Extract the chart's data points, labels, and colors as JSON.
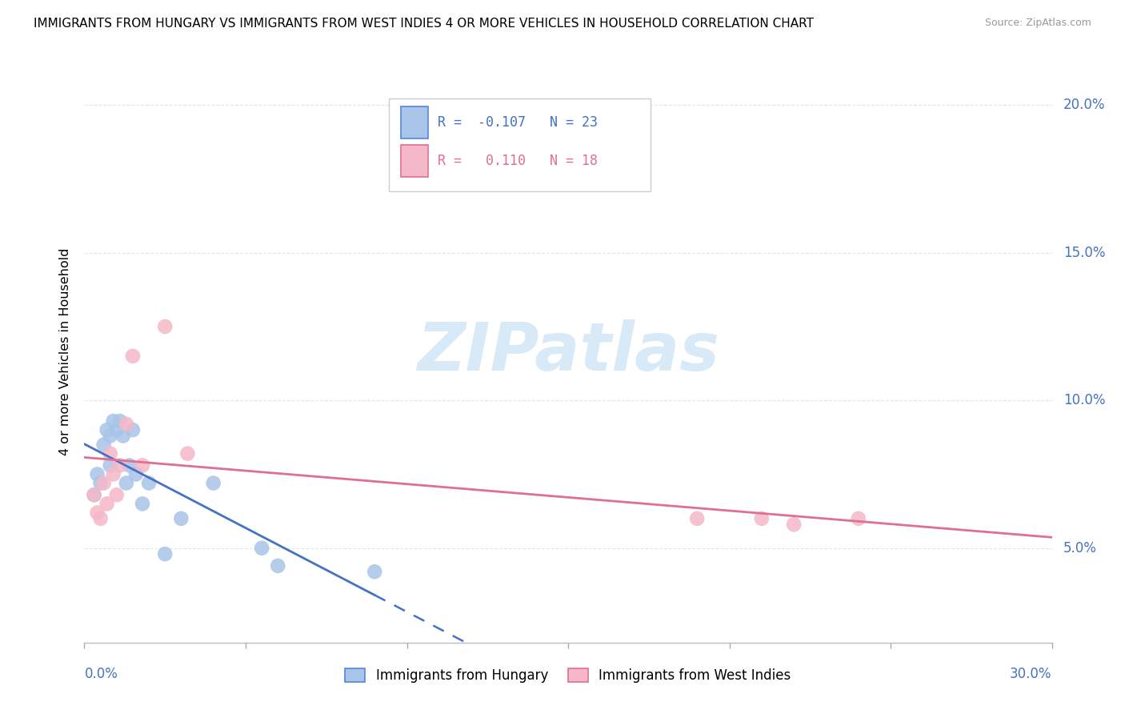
{
  "title": "IMMIGRANTS FROM HUNGARY VS IMMIGRANTS FROM WEST INDIES 4 OR MORE VEHICLES IN HOUSEHOLD CORRELATION CHART",
  "source": "Source: ZipAtlas.com",
  "ylabel": "4 or more Vehicles in Household",
  "xmin": 0.0,
  "xmax": 0.3,
  "ymin": 0.018,
  "ymax": 0.215,
  "legend_hungary": "Immigrants from Hungary",
  "legend_westindies": "Immigrants from West Indies",
  "R_hungary": -0.107,
  "N_hungary": 23,
  "R_westindies": 0.11,
  "N_westindies": 18,
  "hungary_color": "#a8c4e8",
  "westindies_color": "#f5b8c8",
  "hungary_line_color": "#4472c4",
  "westindies_line_color": "#e07090",
  "hungary_scatter_x": [
    0.003,
    0.004,
    0.005,
    0.006,
    0.007,
    0.008,
    0.008,
    0.009,
    0.01,
    0.011,
    0.012,
    0.013,
    0.014,
    0.015,
    0.016,
    0.018,
    0.02,
    0.025,
    0.03,
    0.04,
    0.055,
    0.06,
    0.09
  ],
  "hungary_scatter_y": [
    0.068,
    0.075,
    0.072,
    0.085,
    0.09,
    0.088,
    0.078,
    0.093,
    0.09,
    0.093,
    0.088,
    0.072,
    0.078,
    0.09,
    0.075,
    0.065,
    0.072,
    0.048,
    0.06,
    0.072,
    0.05,
    0.044,
    0.042
  ],
  "westindies_scatter_x": [
    0.003,
    0.004,
    0.005,
    0.006,
    0.007,
    0.008,
    0.009,
    0.01,
    0.011,
    0.013,
    0.015,
    0.018,
    0.025,
    0.032,
    0.19,
    0.21,
    0.22,
    0.24
  ],
  "westindies_scatter_y": [
    0.068,
    0.062,
    0.06,
    0.072,
    0.065,
    0.082,
    0.075,
    0.068,
    0.078,
    0.092,
    0.115,
    0.078,
    0.125,
    0.082,
    0.06,
    0.06,
    0.058,
    0.06
  ],
  "background_color": "#ffffff",
  "grid_color": "#e5e5e5",
  "watermark": "ZIPatlas",
  "yticks": [
    0.05,
    0.1,
    0.15,
    0.2
  ],
  "ytick_labels_right": [
    "5.0%",
    "10.0%",
    "15.0%",
    "20.0%"
  ],
  "xticks": [
    0.0,
    0.05,
    0.1,
    0.15,
    0.2,
    0.25,
    0.3
  ]
}
